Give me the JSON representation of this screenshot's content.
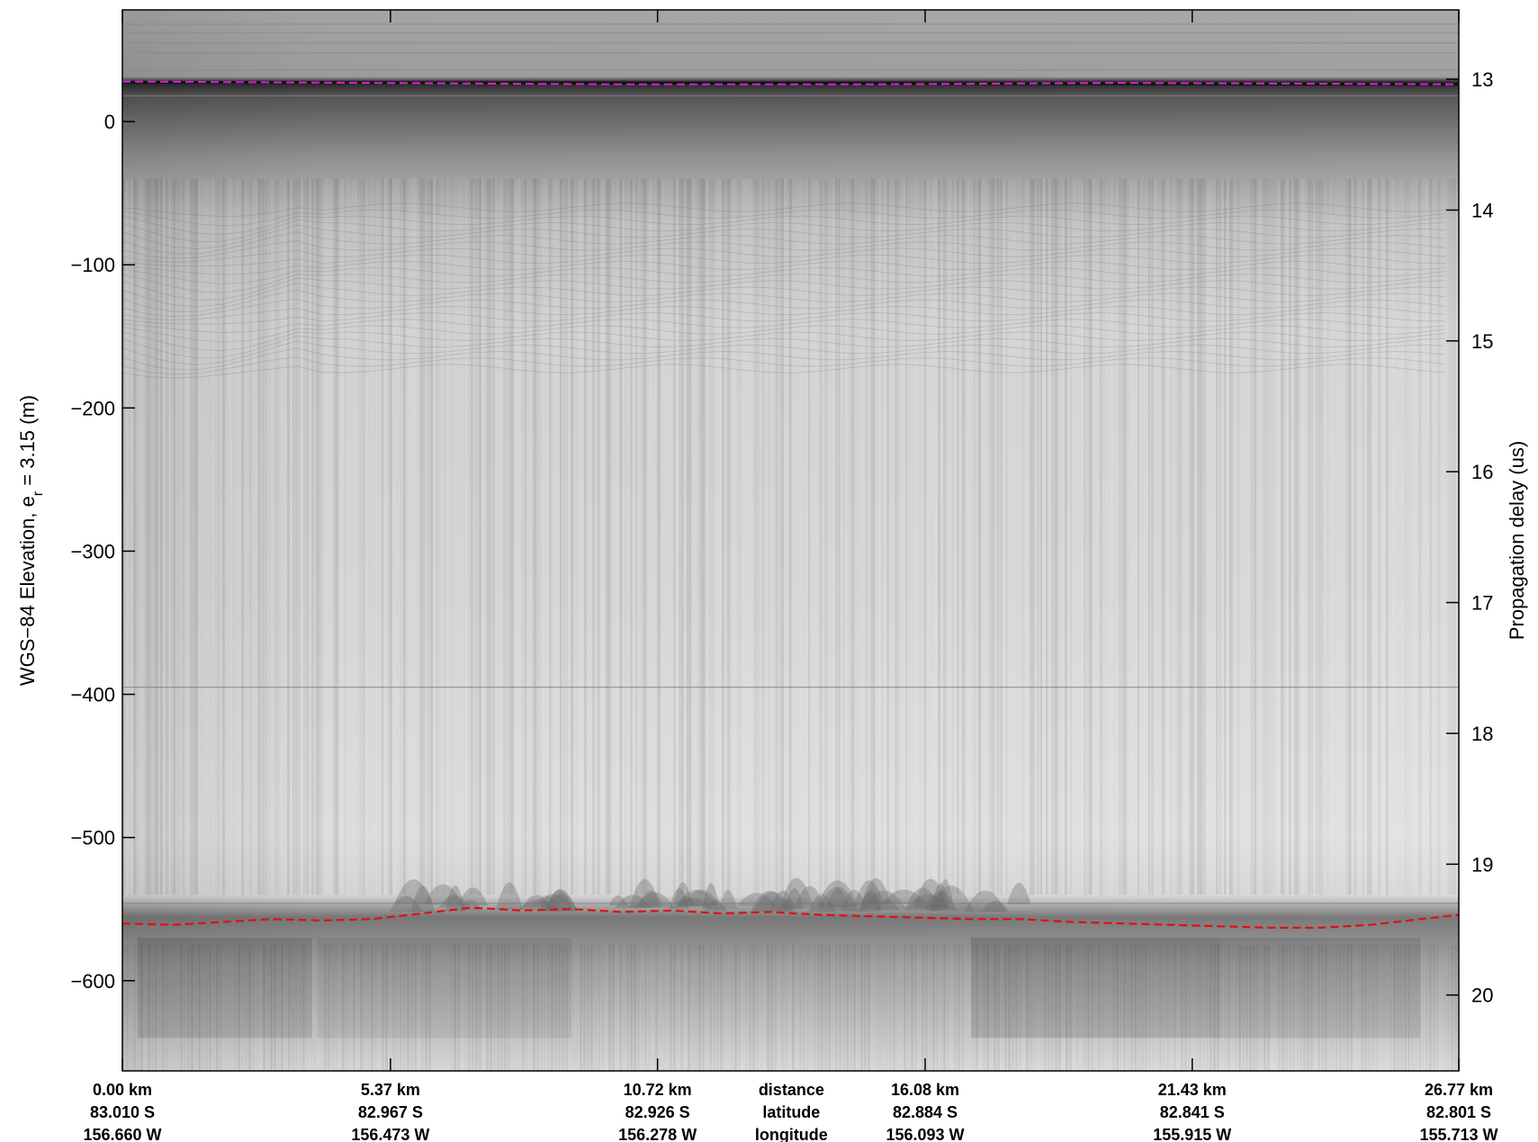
{
  "chart_data": {
    "type": "radargram",
    "left_axis": {
      "label_main": "WGS−84 Elevation, e",
      "label_sub": "r",
      "label_end": " = 3.15 (m)",
      "ticks": [
        0,
        -100,
        -200,
        -300,
        -400,
        -500,
        -600
      ],
      "tick_labels": [
        "0",
        "−100",
        "−200",
        "−300",
        "−400",
        "−500",
        "−600"
      ],
      "range": [
        -663,
        78
      ]
    },
    "right_axis": {
      "label": "Propagation delay (us)",
      "ticks": [
        13,
        14,
        15,
        16,
        17,
        18,
        19,
        20
      ],
      "tick_labels": [
        "13",
        "14",
        "15",
        "16",
        "17",
        "18",
        "19",
        "20"
      ],
      "range": [
        12.47,
        20.58
      ]
    },
    "x_axis": {
      "range_km": [
        0,
        26.77
      ],
      "row_titles": [
        "distance",
        "latitude",
        "longitude"
      ],
      "ticks": [
        {
          "km": 0.0,
          "distance": "0.00 km",
          "latitude": "83.010 S",
          "longitude": "156.660 W"
        },
        {
          "km": 5.37,
          "distance": "5.37 km",
          "latitude": "82.967 S",
          "longitude": "156.473 W"
        },
        {
          "km": 10.72,
          "distance": "10.72 km",
          "latitude": "82.926 S",
          "longitude": "156.278 W"
        },
        {
          "km": 16.08,
          "distance": "16.08 km",
          "latitude": "82.884 S",
          "longitude": "156.093 W"
        },
        {
          "km": 21.43,
          "distance": "21.43 km",
          "latitude": "82.841 S",
          "longitude": "155.915 W"
        },
        {
          "km": 26.77,
          "distance": "26.77 km",
          "latitude": "82.801 S",
          "longitude": "155.713 W"
        }
      ]
    },
    "surface_pick": {
      "color": "#d020d0",
      "style": "dashed",
      "points_km_m": [
        [
          0,
          28
        ],
        [
          5,
          27
        ],
        [
          10,
          26
        ],
        [
          15,
          26
        ],
        [
          20,
          27
        ],
        [
          26.77,
          26
        ]
      ]
    },
    "bed_pick": {
      "color": "#e01010",
      "style": "dashed",
      "points_km_m": [
        [
          0,
          -560
        ],
        [
          1,
          -561
        ],
        [
          2,
          -559
        ],
        [
          3,
          -557
        ],
        [
          4,
          -558
        ],
        [
          5,
          -557
        ],
        [
          6,
          -553
        ],
        [
          7,
          -549
        ],
        [
          8,
          -551
        ],
        [
          9,
          -550
        ],
        [
          10,
          -552
        ],
        [
          11,
          -551
        ],
        [
          12,
          -553
        ],
        [
          13,
          -552
        ],
        [
          14,
          -554
        ],
        [
          15,
          -555
        ],
        [
          16,
          -556
        ],
        [
          17,
          -557
        ],
        [
          18,
          -557
        ],
        [
          19,
          -559
        ],
        [
          20,
          -560
        ],
        [
          21,
          -561
        ],
        [
          22,
          -562
        ],
        [
          23,
          -563
        ],
        [
          24,
          -563
        ],
        [
          25,
          -561
        ],
        [
          26,
          -557
        ],
        [
          26.77,
          -554
        ]
      ]
    },
    "internal_layers_m": [
      -395
    ],
    "colors": {
      "background": "#e4e4e4",
      "air_band": "#a8a8a8",
      "near_surface": "#6e6e6e",
      "basal_shadow": "#9c9c9c"
    }
  }
}
